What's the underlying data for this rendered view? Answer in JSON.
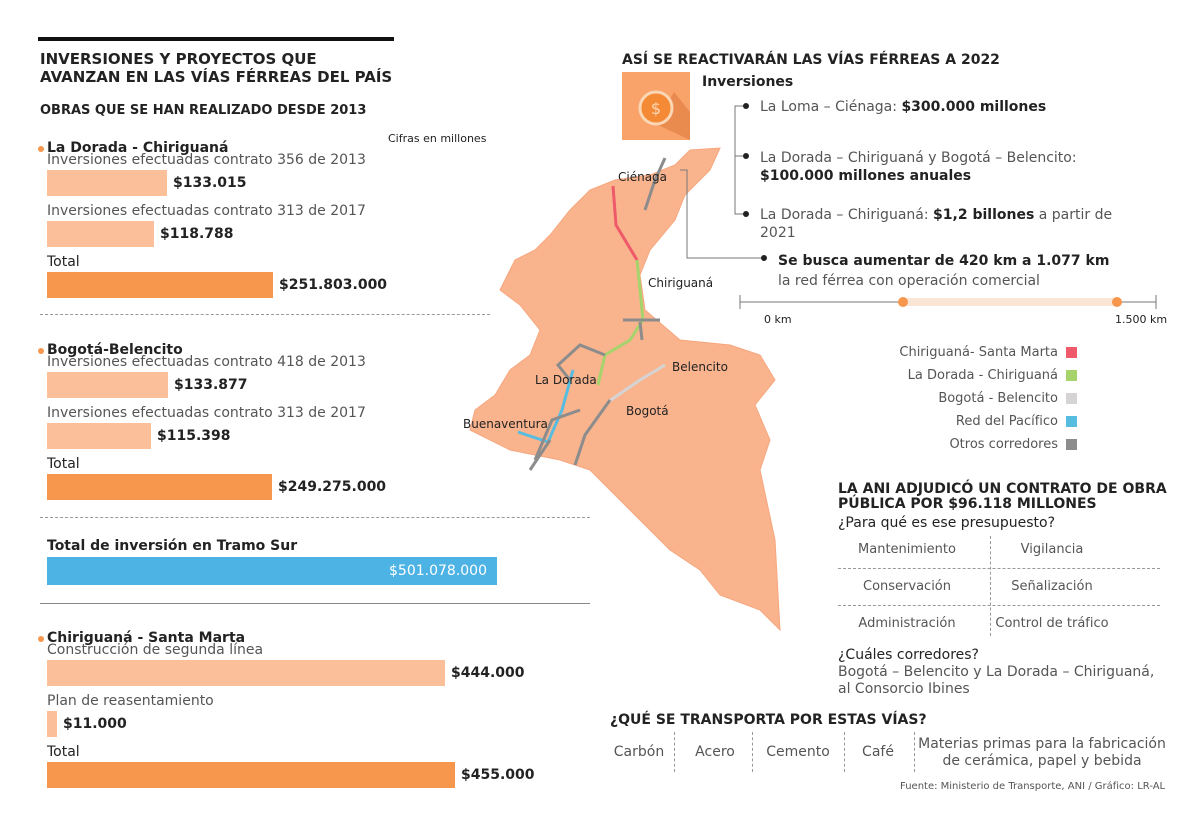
{
  "header": {
    "title": "INVERSIONES Y PROYECTOS QUE AVANZAN EN LAS VÍAS FÉRREAS DEL PAÍS",
    "subtitle": "OBRAS QUE SE HAN REALIZADO DESDE 2013",
    "note": "Cifras en millones"
  },
  "sections": [
    {
      "title": "La Dorada - Chiriguaná",
      "items": [
        {
          "label": "Inversiones efectuadas contrato 356 de 2013",
          "value": "$133.015"
        },
        {
          "label": "Inversiones efectuadas contrato 313 de 2017",
          "value": "$118.788"
        },
        {
          "label": "Total",
          "value": "$251.803.000"
        }
      ]
    },
    {
      "title": "Bogotá-Belencito",
      "items": [
        {
          "label": "Inversiones efectuadas contrato 418 de 2013",
          "value": "$133.877"
        },
        {
          "label": "Inversiones efectuadas contrato 313 de 2017",
          "value": "$115.398"
        },
        {
          "label": "Total",
          "value": "$249.275.000"
        }
      ]
    },
    {
      "title": "Chiriguaná - Santa Marta",
      "items": [
        {
          "label": "Construcción de segunda línea",
          "value": "$444.000"
        },
        {
          "label": "Plan de reasentamiento",
          "value": "$11.000"
        },
        {
          "label": "Total",
          "value": "$455.000"
        }
      ]
    }
  ],
  "tramo_sur": {
    "label": "Total de inversión en Tramo Sur",
    "value": "$501.078.000"
  },
  "plan": {
    "title": "ASÍ SE REACTIVARÁN LAS VÍAS FÉRREAS A 2022",
    "subtitle": "Inversiones",
    "items": [
      {
        "text": "La Loma – Ciénaga: ",
        "bold": "$300.000 millones",
        "rest": ""
      },
      {
        "text": "La Dorada – Chiriguaná y Bogotá – Belencito: ",
        "bold": "$100.000 millones anuales",
        "rest": ""
      },
      {
        "text": "La Dorada – Chiriguaná: ",
        "bold": "$1,2 billones",
        "rest": " a partir de 2021"
      }
    ]
  },
  "goal": {
    "title": "Se busca aumentar de 420 km a 1.077 km",
    "text": "la red férrea con operación comercial",
    "scale_start": "0 km",
    "scale_end": "1.500 km"
  },
  "map": {
    "places": [
      "Ciénaga",
      "Chiriguaná",
      "La Dorada",
      "Belencito",
      "Bogotá",
      "Buenaventura"
    ],
    "legend": [
      {
        "name": "Chiriguaná- Santa Marta",
        "color": "#ef5a6a"
      },
      {
        "name": "La Dorada - Chiriguaná",
        "color": "#a6d36b"
      },
      {
        "name": "Bogotá - Belencito",
        "color": "#d5d3d3"
      },
      {
        "name": "Red del Pacífico",
        "color": "#56bde0"
      },
      {
        "name": "Otros corredores",
        "color": "#8c8c8c"
      }
    ]
  },
  "contract": {
    "title": "LA ANI ADJUDICÓ UN CONTRATO DE OBRA PÚBLICA POR $96.118 MILLONES",
    "question": "¿Para qué es ese presupuesto?",
    "items": [
      "Mantenimiento",
      "Vigilancia",
      "Conservación",
      "Señalización",
      "Administración",
      "Control de tráfico"
    ],
    "question2": "¿Cuáles corredores?",
    "answer": "Bogotá – Belencito y La Dorada – Chiriguaná, al Consorcio Ibines"
  },
  "transport": {
    "title": "¿QUÉ SE TRANSPORTA POR ESTAS VÍAS?",
    "items": [
      "Carbón",
      "Acero",
      "Cemento",
      "Café",
      "Materias primas para la fabricación de cerámica, papel y bebida"
    ]
  },
  "source": "Fuente: Ministerio de Transporte, ANI / Gráfico: LR-AL"
}
